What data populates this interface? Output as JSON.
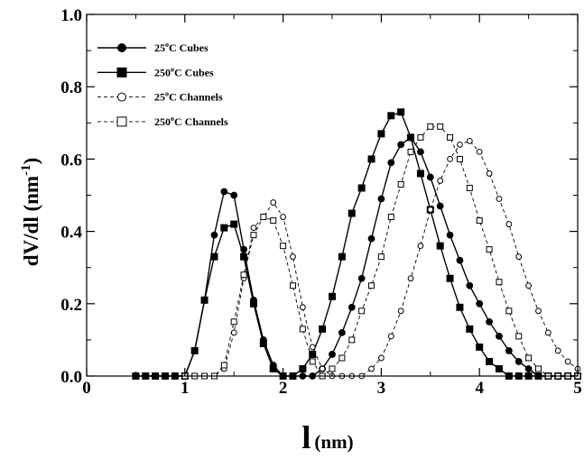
{
  "chart_data": {
    "type": "line",
    "title": "",
    "xlabel": "l",
    "xlabel_unit": "(nm)",
    "ylabel": "dV/dl (nm",
    "ylabel_exp": "-1",
    "ylabel_close": ")",
    "xlim": [
      0,
      5
    ],
    "ylim": [
      0,
      1.0
    ],
    "xticks": [
      0,
      1,
      2,
      3,
      4,
      5
    ],
    "xtick_labels": [
      "0",
      "1",
      "2",
      "3",
      "4",
      "5"
    ],
    "yticks": [
      0.0,
      0.2,
      0.4,
      0.6,
      0.8,
      1.0
    ],
    "ytick_labels": [
      "0.0",
      "0.2",
      "0.4",
      "0.6",
      "0.8",
      "1.0"
    ],
    "grid": false,
    "legend_position": "top-left",
    "series": [
      {
        "name": "25°C Cubes",
        "label_parts": [
          "25",
          "o",
          "C Cubes"
        ],
        "marker": "filled-circle",
        "line": "solid",
        "x": [
          0.5,
          0.6,
          0.7,
          0.8,
          0.9,
          1.0,
          1.1,
          1.2,
          1.3,
          1.4,
          1.5,
          1.6,
          1.7,
          1.8,
          1.9,
          2.0,
          2.1,
          2.2,
          2.3,
          2.4,
          2.5,
          2.6,
          2.7,
          2.8,
          2.9,
          3.0,
          3.1,
          3.2,
          3.3,
          3.4,
          3.5,
          3.6,
          3.7,
          3.8,
          3.9,
          4.0,
          4.1,
          4.2,
          4.3,
          4.4,
          4.5,
          4.6,
          4.7,
          4.8,
          4.9,
          5.0
        ],
        "y": [
          0,
          0,
          0,
          0,
          0,
          0,
          0.07,
          0.21,
          0.39,
          0.51,
          0.5,
          0.35,
          0.21,
          0.1,
          0.03,
          0,
          0,
          0,
          0,
          0.02,
          0.06,
          0.12,
          0.19,
          0.27,
          0.38,
          0.49,
          0.59,
          0.64,
          0.66,
          0.62,
          0.55,
          0.47,
          0.39,
          0.32,
          0.25,
          0.2,
          0.15,
          0.11,
          0.07,
          0.04,
          0.02,
          0,
          0,
          0,
          0,
          0
        ]
      },
      {
        "name": "250°C Cubes",
        "label_parts": [
          "250",
          "o",
          "C Cubes"
        ],
        "marker": "filled-square",
        "line": "solid",
        "x": [
          0.5,
          0.6,
          0.7,
          0.8,
          0.9,
          1.0,
          1.1,
          1.2,
          1.3,
          1.4,
          1.5,
          1.6,
          1.7,
          1.8,
          1.9,
          2.0,
          2.1,
          2.2,
          2.3,
          2.4,
          2.5,
          2.6,
          2.7,
          2.8,
          2.9,
          3.0,
          3.1,
          3.2,
          3.3,
          3.4,
          3.5,
          3.6,
          3.7,
          3.8,
          3.9,
          4.0,
          4.1,
          4.2,
          4.3,
          4.4,
          4.5,
          4.6,
          4.7,
          4.8,
          4.9,
          5.0
        ],
        "y": [
          0,
          0,
          0,
          0,
          0,
          0,
          0.07,
          0.21,
          0.33,
          0.41,
          0.42,
          0.33,
          0.2,
          0.09,
          0.02,
          0,
          0,
          0.02,
          0.06,
          0.13,
          0.22,
          0.33,
          0.45,
          0.52,
          0.6,
          0.67,
          0.72,
          0.73,
          0.66,
          0.56,
          0.46,
          0.36,
          0.27,
          0.19,
          0.13,
          0.08,
          0.04,
          0.02,
          0,
          0,
          0,
          0,
          0,
          0,
          0,
          0
        ]
      },
      {
        "name": "25°C Channels",
        "label_parts": [
          "25",
          "o",
          "C Channels"
        ],
        "marker": "open-circle",
        "line": "dashed",
        "x": [
          1.0,
          1.1,
          1.2,
          1.3,
          1.4,
          1.5,
          1.6,
          1.7,
          1.8,
          1.9,
          2.0,
          2.1,
          2.2,
          2.3,
          2.4,
          2.5,
          2.6,
          2.7,
          2.8,
          2.9,
          3.0,
          3.1,
          3.2,
          3.3,
          3.4,
          3.5,
          3.6,
          3.7,
          3.8,
          3.9,
          4.0,
          4.1,
          4.2,
          4.3,
          4.4,
          4.5,
          4.6,
          4.7,
          4.8,
          4.9,
          5.0
        ],
        "y": [
          0,
          0,
          0,
          0,
          0.02,
          0.12,
          0.27,
          0.41,
          0.44,
          0.48,
          0.44,
          0.33,
          0.19,
          0.08,
          0.02,
          0,
          0,
          0,
          0,
          0.02,
          0.05,
          0.11,
          0.18,
          0.27,
          0.36,
          0.46,
          0.54,
          0.6,
          0.64,
          0.65,
          0.62,
          0.56,
          0.49,
          0.42,
          0.33,
          0.25,
          0.18,
          0.12,
          0.07,
          0.04,
          0.02
        ]
      },
      {
        "name": "250°C Channels",
        "label_parts": [
          "250",
          "o",
          "C Channels"
        ],
        "marker": "open-square",
        "line": "dashed",
        "x": [
          1.0,
          1.1,
          1.2,
          1.3,
          1.4,
          1.5,
          1.6,
          1.7,
          1.8,
          1.9,
          2.0,
          2.1,
          2.2,
          2.3,
          2.4,
          2.5,
          2.6,
          2.7,
          2.8,
          2.9,
          3.0,
          3.1,
          3.2,
          3.3,
          3.4,
          3.5,
          3.6,
          3.7,
          3.8,
          3.9,
          4.0,
          4.1,
          4.2,
          4.3,
          4.4,
          4.5,
          4.6,
          4.7,
          4.8,
          4.9,
          5.0
        ],
        "y": [
          0,
          0,
          0,
          0,
          0.03,
          0.15,
          0.28,
          0.39,
          0.44,
          0.43,
          0.36,
          0.25,
          0.13,
          0.04,
          0,
          0.02,
          0.05,
          0.1,
          0.18,
          0.25,
          0.33,
          0.44,
          0.53,
          0.62,
          0.66,
          0.69,
          0.69,
          0.66,
          0.6,
          0.52,
          0.43,
          0.35,
          0.26,
          0.18,
          0.11,
          0.05,
          0.02,
          0,
          0,
          0,
          0
        ]
      }
    ]
  }
}
